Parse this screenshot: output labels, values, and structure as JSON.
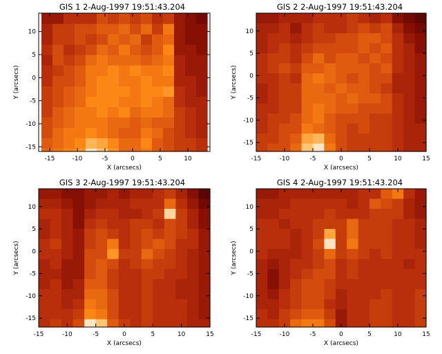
{
  "chart_data": [
    {
      "type": "heatmap",
      "title": "GIS 1  2-Aug-1997 19:51:43.204",
      "xlabel": "X (arcsecs)",
      "ylabel": "Y (arcsecs)",
      "xlim": [
        -17,
        14
      ],
      "ylim": [
        -16,
        14
      ],
      "xticks": [
        -15,
        -10,
        -5,
        0,
        5,
        10
      ],
      "yticks": [
        -15,
        -10,
        -5,
        0,
        5,
        10
      ],
      "x_centers": [
        -15.5,
        -13.5,
        -11.5,
        -9.5,
        -7.5,
        -5.5,
        -3.5,
        -1.5,
        0.5,
        2.5,
        4.5,
        6.5,
        8.5,
        10.5,
        12.5
      ],
      "y_centers": [
        12.8,
        10.5,
        8.3,
        6.0,
        3.8,
        1.5,
        -0.8,
        -3.0,
        -5.3,
        -7.5,
        -9.8,
        -12.0,
        -14.3,
        -16.5
      ],
      "colormap": [
        "#2a0000",
        "#7a0a02",
        "#b52a0a",
        "#e05a10",
        "#ff8c14",
        "#ffc06a",
        "#fff5ea"
      ],
      "values": [
        [
          0.25,
          0.25,
          0.35,
          0.35,
          0.35,
          0.45,
          0.4,
          0.45,
          0.4,
          0.45,
          0.35,
          0.4,
          0.25,
          0.2,
          0.15
        ],
        [
          0.3,
          0.4,
          0.4,
          0.45,
          0.45,
          0.5,
          0.5,
          0.55,
          0.45,
          0.55,
          0.4,
          0.6,
          0.25,
          0.2,
          0.2
        ],
        [
          0.3,
          0.4,
          0.4,
          0.45,
          0.4,
          0.45,
          0.55,
          0.5,
          0.55,
          0.4,
          0.5,
          0.55,
          0.25,
          0.2,
          0.2
        ],
        [
          0.35,
          0.45,
          0.35,
          0.4,
          0.45,
          0.55,
          0.5,
          0.6,
          0.5,
          0.45,
          0.5,
          0.65,
          0.25,
          0.25,
          0.2
        ],
        [
          0.3,
          0.45,
          0.4,
          0.45,
          0.55,
          0.6,
          0.55,
          0.55,
          0.55,
          0.5,
          0.55,
          0.6,
          0.3,
          0.25,
          0.25
        ],
        [
          0.35,
          0.4,
          0.45,
          0.5,
          0.6,
          0.6,
          0.65,
          0.6,
          0.65,
          0.6,
          0.6,
          0.65,
          0.3,
          0.25,
          0.25
        ],
        [
          0.35,
          0.45,
          0.45,
          0.5,
          0.6,
          0.65,
          0.65,
          0.6,
          0.6,
          0.65,
          0.6,
          0.6,
          0.3,
          0.3,
          0.25
        ],
        [
          0.4,
          0.45,
          0.5,
          0.55,
          0.6,
          0.65,
          0.65,
          0.65,
          0.6,
          0.65,
          0.65,
          0.7,
          0.35,
          0.3,
          0.25
        ],
        [
          0.4,
          0.45,
          0.5,
          0.55,
          0.65,
          0.65,
          0.65,
          0.6,
          0.6,
          0.65,
          0.6,
          0.55,
          0.35,
          0.3,
          0.3
        ],
        [
          0.4,
          0.5,
          0.55,
          0.6,
          0.6,
          0.65,
          0.6,
          0.65,
          0.55,
          0.6,
          0.6,
          0.55,
          0.4,
          0.35,
          0.3
        ],
        [
          0.45,
          0.5,
          0.55,
          0.6,
          0.6,
          0.6,
          0.55,
          0.55,
          0.5,
          0.55,
          0.5,
          0.5,
          0.4,
          0.35,
          0.3
        ],
        [
          0.45,
          0.55,
          0.6,
          0.6,
          0.65,
          0.6,
          0.55,
          0.5,
          0.5,
          0.6,
          0.55,
          0.45,
          0.4,
          0.35,
          0.3
        ],
        [
          0.5,
          0.55,
          0.6,
          0.65,
          0.8,
          0.75,
          0.65,
          0.55,
          0.55,
          0.65,
          0.5,
          0.45,
          0.4,
          0.4,
          0.35
        ],
        [
          0.55,
          0.6,
          0.65,
          0.7,
          0.95,
          0.85,
          0.7,
          0.55,
          0.55,
          0.6,
          0.5,
          0.45,
          0.4,
          0.4,
          0.35
        ]
      ]
    },
    {
      "type": "heatmap",
      "title": "GIS 2  2-Aug-1997 19:51:43.204",
      "xlabel": "X (arcsecs)",
      "ylabel": "Y (arcsecs)",
      "xlim": [
        -15,
        15
      ],
      "ylim": [
        -17,
        14
      ],
      "xticks": [
        -15,
        -10,
        -5,
        0,
        5,
        10,
        15
      ],
      "yticks": [
        -15,
        -10,
        -5,
        0,
        5,
        10
      ],
      "x_centers": [
        -14,
        -12,
        -10,
        -8,
        -6,
        -4,
        -2,
        0,
        2,
        4,
        6,
        8,
        10,
        12,
        14
      ],
      "y_centers": [
        12.9,
        10.6,
        8.4,
        6.1,
        3.9,
        1.6,
        -0.6,
        -2.9,
        -5.1,
        -7.4,
        -9.6,
        -11.9,
        -14.1,
        -16.4
      ],
      "colormap": [
        "#2a0000",
        "#7a0a02",
        "#b52a0a",
        "#e05a10",
        "#ff8c14",
        "#ffc06a",
        "#fff5ea"
      ],
      "values": [
        [
          0.25,
          0.25,
          0.3,
          0.3,
          0.3,
          0.35,
          0.35,
          0.35,
          0.4,
          0.35,
          0.3,
          0.35,
          0.2,
          0.15,
          0.1
        ],
        [
          0.3,
          0.3,
          0.35,
          0.25,
          0.35,
          0.4,
          0.35,
          0.35,
          0.4,
          0.45,
          0.4,
          0.45,
          0.3,
          0.2,
          0.15
        ],
        [
          0.3,
          0.35,
          0.35,
          0.3,
          0.35,
          0.4,
          0.4,
          0.45,
          0.45,
          0.5,
          0.5,
          0.45,
          0.35,
          0.25,
          0.2
        ],
        [
          0.3,
          0.35,
          0.4,
          0.35,
          0.4,
          0.45,
          0.45,
          0.45,
          0.45,
          0.5,
          0.45,
          0.5,
          0.35,
          0.3,
          0.2
        ],
        [
          0.35,
          0.4,
          0.4,
          0.35,
          0.45,
          0.55,
          0.45,
          0.5,
          0.5,
          0.45,
          0.5,
          0.45,
          0.35,
          0.3,
          0.25
        ],
        [
          0.35,
          0.4,
          0.45,
          0.4,
          0.5,
          0.5,
          0.55,
          0.5,
          0.5,
          0.5,
          0.45,
          0.5,
          0.35,
          0.3,
          0.25
        ],
        [
          0.35,
          0.35,
          0.4,
          0.35,
          0.55,
          0.6,
          0.55,
          0.5,
          0.45,
          0.5,
          0.45,
          0.45,
          0.3,
          0.3,
          0.25
        ],
        [
          0.3,
          0.35,
          0.4,
          0.4,
          0.55,
          0.55,
          0.5,
          0.55,
          0.5,
          0.5,
          0.45,
          0.4,
          0.3,
          0.3,
          0.25
        ],
        [
          0.3,
          0.35,
          0.4,
          0.4,
          0.55,
          0.55,
          0.55,
          0.5,
          0.55,
          0.5,
          0.5,
          0.45,
          0.35,
          0.3,
          0.25
        ],
        [
          0.35,
          0.35,
          0.4,
          0.4,
          0.55,
          0.6,
          0.55,
          0.5,
          0.5,
          0.45,
          0.45,
          0.45,
          0.35,
          0.3,
          0.25
        ],
        [
          0.35,
          0.4,
          0.4,
          0.45,
          0.55,
          0.6,
          0.5,
          0.45,
          0.45,
          0.45,
          0.4,
          0.4,
          0.35,
          0.3,
          0.25
        ],
        [
          0.35,
          0.4,
          0.45,
          0.45,
          0.6,
          0.55,
          0.5,
          0.45,
          0.4,
          0.45,
          0.4,
          0.4,
          0.35,
          0.3,
          0.3
        ],
        [
          0.4,
          0.4,
          0.45,
          0.5,
          0.75,
          0.8,
          0.55,
          0.45,
          0.4,
          0.4,
          0.4,
          0.4,
          0.35,
          0.3,
          0.3
        ],
        [
          0.4,
          0.45,
          0.45,
          0.55,
          0.85,
          0.95,
          0.6,
          0.45,
          0.4,
          0.4,
          0.4,
          0.4,
          0.35,
          0.3,
          0.3
        ]
      ]
    },
    {
      "type": "heatmap",
      "title": "GIS 3  2-Aug-1997 19:51:43.204",
      "xlabel": "X (arcsecs)",
      "ylabel": "Y (arcsecs)",
      "xlim": [
        -15,
        15
      ],
      "ylim": [
        -17,
        14
      ],
      "xticks": [
        -15,
        -10,
        -5,
        0,
        5,
        10,
        15
      ],
      "yticks": [
        -15,
        -10,
        -5,
        0,
        5,
        10
      ],
      "x_centers": [
        -14,
        -12,
        -10,
        -8,
        -6,
        -4,
        -2,
        0,
        2,
        4,
        6,
        8,
        10,
        12,
        14
      ],
      "y_centers": [
        12.9,
        10.6,
        8.4,
        6.1,
        3.9,
        1.6,
        -0.6,
        -2.9,
        -5.1,
        -7.4,
        -9.6,
        -11.9,
        -14.1,
        -16.4
      ],
      "colormap": [
        "#2a0000",
        "#7a0a02",
        "#b52a0a",
        "#e05a10",
        "#ff8c14",
        "#ffc06a",
        "#fff5ea"
      ],
      "values": [
        [
          0.25,
          0.25,
          0.2,
          0.2,
          0.25,
          0.25,
          0.3,
          0.25,
          0.3,
          0.3,
          0.35,
          0.4,
          0.3,
          0.2,
          0.1
        ],
        [
          0.3,
          0.3,
          0.25,
          0.2,
          0.25,
          0.3,
          0.3,
          0.3,
          0.35,
          0.35,
          0.35,
          0.55,
          0.35,
          0.25,
          0.15
        ],
        [
          0.35,
          0.35,
          0.3,
          0.2,
          0.3,
          0.35,
          0.35,
          0.3,
          0.3,
          0.35,
          0.4,
          0.9,
          0.4,
          0.3,
          0.2
        ],
        [
          0.3,
          0.35,
          0.3,
          0.2,
          0.35,
          0.4,
          0.35,
          0.35,
          0.4,
          0.4,
          0.35,
          0.45,
          0.4,
          0.3,
          0.2
        ],
        [
          0.3,
          0.35,
          0.3,
          0.25,
          0.4,
          0.45,
          0.4,
          0.35,
          0.4,
          0.45,
          0.4,
          0.45,
          0.4,
          0.35,
          0.25
        ],
        [
          0.35,
          0.4,
          0.3,
          0.25,
          0.4,
          0.45,
          0.6,
          0.35,
          0.4,
          0.45,
          0.5,
          0.45,
          0.35,
          0.35,
          0.25
        ],
        [
          0.35,
          0.35,
          0.3,
          0.25,
          0.45,
          0.45,
          0.7,
          0.4,
          0.4,
          0.55,
          0.45,
          0.4,
          0.35,
          0.3,
          0.25
        ],
        [
          0.3,
          0.35,
          0.25,
          0.25,
          0.45,
          0.5,
          0.45,
          0.35,
          0.4,
          0.45,
          0.4,
          0.4,
          0.35,
          0.3,
          0.25
        ],
        [
          0.3,
          0.3,
          0.25,
          0.25,
          0.45,
          0.5,
          0.4,
          0.35,
          0.35,
          0.4,
          0.4,
          0.35,
          0.35,
          0.3,
          0.25
        ],
        [
          0.3,
          0.35,
          0.25,
          0.3,
          0.5,
          0.5,
          0.4,
          0.35,
          0.35,
          0.4,
          0.35,
          0.35,
          0.3,
          0.3,
          0.25
        ],
        [
          0.35,
          0.35,
          0.3,
          0.3,
          0.55,
          0.55,
          0.45,
          0.35,
          0.35,
          0.4,
          0.35,
          0.35,
          0.3,
          0.3,
          0.25
        ],
        [
          0.35,
          0.35,
          0.3,
          0.35,
          0.6,
          0.55,
          0.45,
          0.35,
          0.35,
          0.4,
          0.35,
          0.35,
          0.35,
          0.3,
          0.25
        ],
        [
          0.35,
          0.35,
          0.35,
          0.4,
          0.65,
          0.6,
          0.45,
          0.35,
          0.35,
          0.4,
          0.35,
          0.35,
          0.35,
          0.3,
          0.25
        ],
        [
          0.35,
          0.4,
          0.35,
          0.45,
          0.95,
          0.85,
          0.5,
          0.4,
          0.35,
          0.4,
          0.35,
          0.35,
          0.35,
          0.3,
          0.3
        ]
      ]
    },
    {
      "type": "heatmap",
      "title": "GIS 4  2-Aug-1997 19:51:43.204",
      "xlabel": "X (arcsecs)",
      "ylabel": "Y (arcsecs)",
      "xlim": [
        -15,
        15
      ],
      "ylim": [
        -17,
        14
      ],
      "xticks": [
        -15,
        -10,
        -5,
        0,
        5,
        10,
        15
      ],
      "yticks": [
        -15,
        -10,
        -5,
        0,
        5,
        10
      ],
      "x_centers": [
        -14,
        -12,
        -10,
        -8,
        -6,
        -4,
        -2,
        0,
        2,
        4,
        6,
        8,
        10,
        12,
        14
      ],
      "y_centers": [
        12.9,
        10.6,
        8.4,
        6.1,
        3.9,
        1.6,
        -0.6,
        -2.9,
        -5.1,
        -7.4,
        -9.6,
        -11.9,
        -14.1,
        -16.4
      ],
      "colormap": [
        "#2a0000",
        "#7a0a02",
        "#b52a0a",
        "#e05a10",
        "#ff8c14",
        "#ffc06a",
        "#fff5ea"
      ],
      "values": [
        [
          0.25,
          0.25,
          0.3,
          0.3,
          0.3,
          0.3,
          0.3,
          0.3,
          0.3,
          0.35,
          0.35,
          0.5,
          0.6,
          0.35,
          0.25
        ],
        [
          0.3,
          0.3,
          0.3,
          0.35,
          0.35,
          0.35,
          0.35,
          0.35,
          0.3,
          0.35,
          0.5,
          0.45,
          0.4,
          0.3,
          0.25
        ],
        [
          0.3,
          0.3,
          0.35,
          0.35,
          0.35,
          0.35,
          0.4,
          0.35,
          0.35,
          0.35,
          0.4,
          0.4,
          0.4,
          0.3,
          0.25
        ],
        [
          0.35,
          0.35,
          0.3,
          0.35,
          0.35,
          0.4,
          0.4,
          0.4,
          0.55,
          0.4,
          0.4,
          0.4,
          0.35,
          0.35,
          0.3
        ],
        [
          0.35,
          0.35,
          0.35,
          0.3,
          0.35,
          0.4,
          0.75,
          0.4,
          0.55,
          0.4,
          0.4,
          0.4,
          0.35,
          0.35,
          0.3
        ],
        [
          0.35,
          0.35,
          0.35,
          0.3,
          0.35,
          0.45,
          0.95,
          0.4,
          0.6,
          0.4,
          0.4,
          0.4,
          0.35,
          0.35,
          0.3
        ],
        [
          0.35,
          0.3,
          0.3,
          0.3,
          0.35,
          0.4,
          0.55,
          0.4,
          0.45,
          0.4,
          0.35,
          0.4,
          0.35,
          0.35,
          0.35
        ],
        [
          0.3,
          0.25,
          0.3,
          0.35,
          0.35,
          0.4,
          0.45,
          0.35,
          0.4,
          0.35,
          0.35,
          0.35,
          0.35,
          0.3,
          0.35
        ],
        [
          0.3,
          0.2,
          0.3,
          0.35,
          0.4,
          0.45,
          0.45,
          0.35,
          0.4,
          0.35,
          0.35,
          0.35,
          0.35,
          0.35,
          0.35
        ],
        [
          0.3,
          0.2,
          0.3,
          0.4,
          0.45,
          0.45,
          0.4,
          0.35,
          0.35,
          0.35,
          0.35,
          0.35,
          0.35,
          0.35,
          0.35
        ],
        [
          0.3,
          0.25,
          0.35,
          0.4,
          0.45,
          0.45,
          0.4,
          0.3,
          0.35,
          0.35,
          0.35,
          0.4,
          0.35,
          0.35,
          0.4
        ],
        [
          0.3,
          0.3,
          0.35,
          0.4,
          0.45,
          0.45,
          0.35,
          0.3,
          0.35,
          0.35,
          0.4,
          0.4,
          0.35,
          0.35,
          0.4
        ],
        [
          0.35,
          0.3,
          0.4,
          0.45,
          0.5,
          0.5,
          0.4,
          0.25,
          0.35,
          0.35,
          0.4,
          0.4,
          0.35,
          0.35,
          0.4
        ],
        [
          0.35,
          0.35,
          0.4,
          0.55,
          0.6,
          0.6,
          0.45,
          0.25,
          0.35,
          0.35,
          0.4,
          0.4,
          0.35,
          0.35,
          0.4
        ]
      ]
    }
  ]
}
